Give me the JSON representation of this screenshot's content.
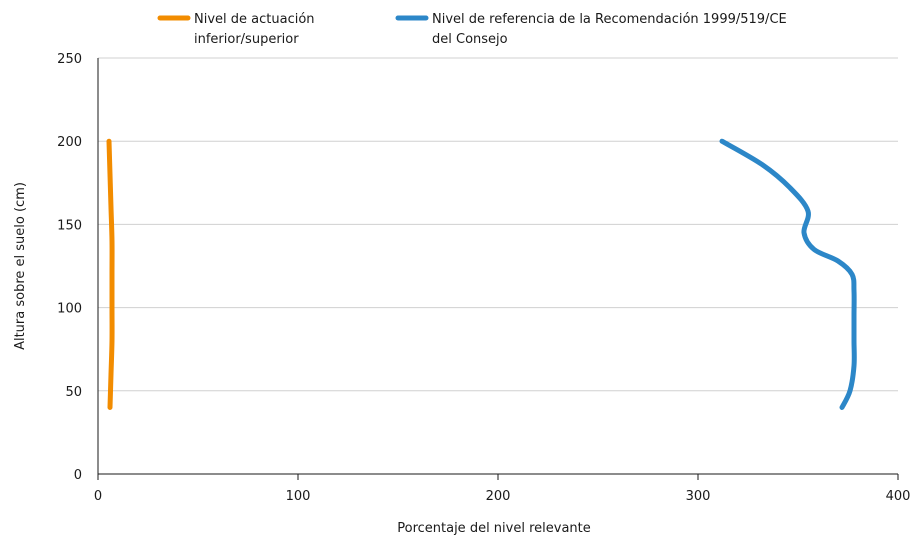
{
  "chart_data": {
    "type": "line",
    "title": "",
    "xlabel": "Porcentaje del nivel relevante",
    "ylabel": "Altura sobre el suelo (cm)",
    "xlim": [
      0,
      400
    ],
    "ylim": [
      0,
      250
    ],
    "xticks": [
      0,
      100,
      200,
      300,
      400
    ],
    "yticks": [
      0,
      50,
      100,
      150,
      200,
      250
    ],
    "xtick_labels": [
      "0",
      "100",
      "200",
      "300",
      "400"
    ],
    "ytick_labels": [
      "0",
      "50",
      "100",
      "150",
      "200",
      "250"
    ],
    "grid": "horizontal",
    "legend_position": "top",
    "series": [
      {
        "name_lines": [
          "Nivel de actuación",
          "inferior/superior"
        ],
        "color": "#f28c00",
        "points": [
          [
            6,
            40
          ],
          [
            6.5,
            60
          ],
          [
            7,
            80
          ],
          [
            7,
            100
          ],
          [
            7,
            120
          ],
          [
            7,
            140
          ],
          [
            6.5,
            160
          ],
          [
            6,
            180
          ],
          [
            5.5,
            200
          ]
        ]
      },
      {
        "name_lines": [
          "Nivel de referencia de la Recomendación 1999/519/CE",
          "del Consejo"
        ],
        "color": "#2c87c8",
        "points": [
          [
            372,
            40
          ],
          [
            376,
            50
          ],
          [
            378,
            65
          ],
          [
            378,
            80
          ],
          [
            378,
            95
          ],
          [
            378,
            110
          ],
          [
            377,
            120
          ],
          [
            370,
            128
          ],
          [
            358,
            135
          ],
          [
            353,
            145
          ],
          [
            355,
            158
          ],
          [
            346,
            172
          ],
          [
            332,
            186
          ],
          [
            312,
            200
          ]
        ]
      }
    ]
  }
}
